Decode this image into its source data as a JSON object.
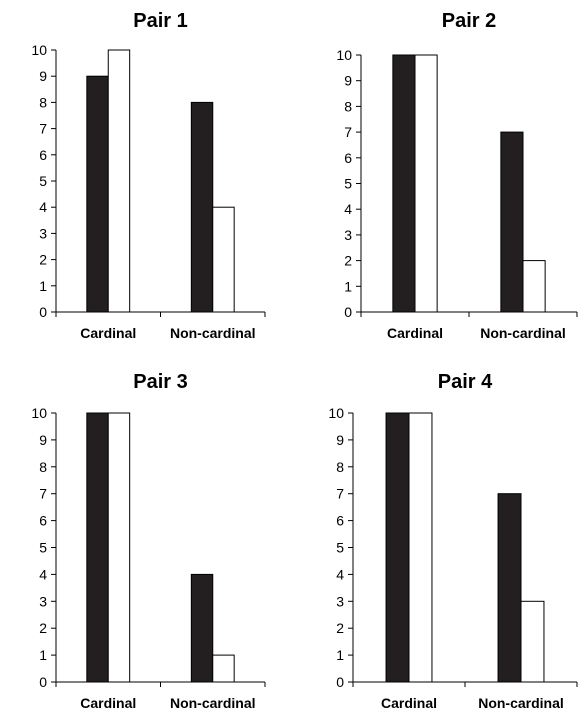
{
  "colors": {
    "series_1": "#231f20",
    "series_2": "#ffffff",
    "outline": "#000000"
  },
  "chart_data": [
    {
      "type": "bar",
      "title": "Pair 1",
      "categories": [
        "Cardinal",
        "Non-cardinal"
      ],
      "series": [
        {
          "values": [
            9,
            8
          ]
        },
        {
          "values": [
            10,
            4
          ]
        }
      ],
      "ylim": [
        0,
        10
      ],
      "yticks": [
        "0",
        "1",
        "2",
        "3",
        "4",
        "5",
        "6",
        "7",
        "8",
        "9",
        "10"
      ],
      "grid": false,
      "legend": "none"
    },
    {
      "type": "bar",
      "title": "Pair 2",
      "categories": [
        "Cardinal",
        "Non-cardinal"
      ],
      "series": [
        {
          "values": [
            10,
            7
          ]
        },
        {
          "values": [
            10,
            2
          ]
        }
      ],
      "ylim": [
        0,
        10
      ],
      "yticks": [
        "0",
        "1",
        "2",
        "3",
        "4",
        "5",
        "6",
        "7",
        "8",
        "9",
        "10"
      ],
      "grid": false,
      "legend": "none"
    },
    {
      "type": "bar",
      "title": "Pair 3",
      "categories": [
        "Cardinal",
        "Non-cardinal"
      ],
      "series": [
        {
          "values": [
            10,
            4
          ]
        },
        {
          "values": [
            10,
            1
          ]
        }
      ],
      "ylim": [
        0,
        10
      ],
      "yticks": [
        "0",
        "1",
        "2",
        "3",
        "4",
        "5",
        "6",
        "7",
        "8",
        "9",
        "10"
      ],
      "grid": false,
      "legend": "none"
    },
    {
      "type": "bar",
      "title": "Pair 4",
      "categories": [
        "Cardinal",
        "Non-cardinal"
      ],
      "series": [
        {
          "values": [
            10,
            7
          ]
        },
        {
          "values": [
            10,
            3
          ]
        }
      ],
      "ylim": [
        0,
        10
      ],
      "yticks": [
        "0",
        "1",
        "2",
        "3",
        "4",
        "5",
        "6",
        "7",
        "8",
        "9",
        "10"
      ],
      "grid": false,
      "legend": "none"
    }
  ]
}
